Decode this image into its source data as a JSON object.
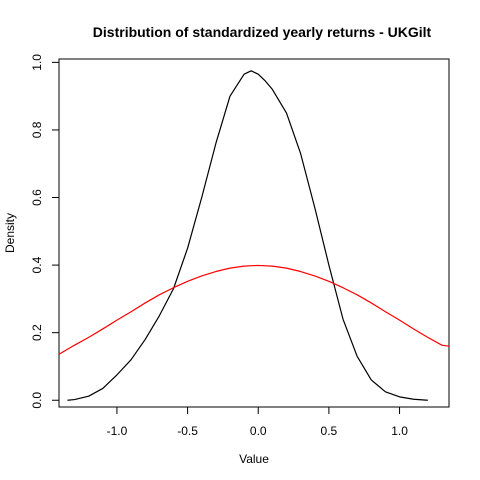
{
  "chart_data": {
    "type": "line",
    "title": "Distribution of standardized yearly returns - UKGilt",
    "xlabel": "Value",
    "ylabel": "Density",
    "xlim": [
      -1.41,
      1.35
    ],
    "ylim": [
      -0.02,
      1.01
    ],
    "xticks": [
      -1.0,
      -0.5,
      0.0,
      0.5,
      1.0
    ],
    "xtick_labels": [
      "-1.0",
      "-0.5",
      "0.0",
      "0.5",
      "1.0"
    ],
    "yticks": [
      0.0,
      0.2,
      0.4,
      0.6,
      0.8,
      1.0
    ],
    "ytick_labels": [
      "0.0",
      "0.2",
      "0.4",
      "0.6",
      "0.8",
      "1.0"
    ],
    "grid": false,
    "legend": "none",
    "series": [
      {
        "color": "#000000",
        "x": [
          -1.35,
          -1.3,
          -1.2,
          -1.1,
          -1.0,
          -0.9,
          -0.8,
          -0.7,
          -0.6,
          -0.5,
          -0.4,
          -0.3,
          -0.2,
          -0.1,
          -0.05,
          0.0,
          0.05,
          0.1,
          0.2,
          0.3,
          0.4,
          0.5,
          0.6,
          0.7,
          0.8,
          0.9,
          1.0,
          1.1,
          1.2
        ],
        "y": [
          0.0,
          0.002,
          0.012,
          0.035,
          0.075,
          0.12,
          0.18,
          0.25,
          0.33,
          0.45,
          0.6,
          0.76,
          0.9,
          0.965,
          0.975,
          0.965,
          0.945,
          0.92,
          0.85,
          0.73,
          0.57,
          0.4,
          0.24,
          0.13,
          0.06,
          0.025,
          0.01,
          0.003,
          0.0
        ]
      },
      {
        "color": "#ff0000",
        "x": [
          -1.41,
          -1.3,
          -1.2,
          -1.1,
          -1.0,
          -0.9,
          -0.8,
          -0.7,
          -0.6,
          -0.5,
          -0.4,
          -0.3,
          -0.2,
          -0.1,
          0.0,
          0.1,
          0.2,
          0.3,
          0.4,
          0.5,
          0.6,
          0.7,
          0.8,
          0.9,
          1.0,
          1.1,
          1.2,
          1.3,
          1.35
        ],
        "y": [
          0.136,
          0.163,
          0.186,
          0.211,
          0.237,
          0.262,
          0.288,
          0.312,
          0.333,
          0.352,
          0.368,
          0.381,
          0.391,
          0.397,
          0.399,
          0.397,
          0.391,
          0.381,
          0.368,
          0.352,
          0.333,
          0.312,
          0.288,
          0.262,
          0.237,
          0.211,
          0.186,
          0.163,
          0.16
        ]
      }
    ]
  }
}
